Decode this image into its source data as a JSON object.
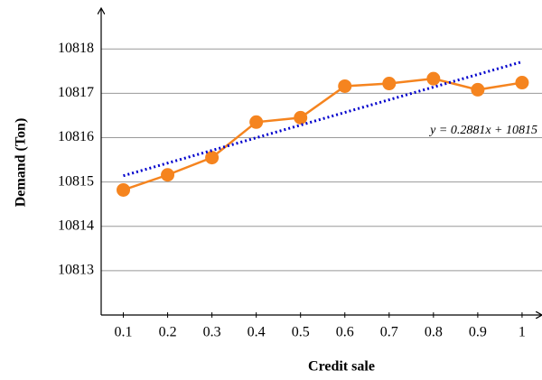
{
  "chart_data": {
    "type": "line",
    "x_label": "Credit sale",
    "y_label": "Demand (Ton)",
    "x": [
      0.1,
      0.2,
      0.3,
      0.4,
      0.5,
      0.6,
      0.7,
      0.8,
      0.9,
      1
    ],
    "series": [
      {
        "color": "#f5841f",
        "values": [
          10814.82,
          10815.16,
          10815.55,
          10816.35,
          10816.45,
          10817.16,
          10817.22,
          10817.33,
          10817.08,
          10817.24
        ]
      }
    ],
    "trendline": {
      "x": [
        0.1,
        1
      ],
      "values": [
        10815.14,
        10817.71
      ],
      "color": "#0000cc",
      "label": "y = 0.2881x + 10815"
    },
    "xlim": [
      0.05,
      1.045
    ],
    "xticks": [
      0.1,
      0.2,
      0.3,
      0.4,
      0.5,
      0.6,
      0.7,
      0.8,
      0.9,
      1
    ],
    "ylim": [
      10812,
      10818.9
    ],
    "yticks": [
      10813,
      10814,
      10815,
      10816,
      10817,
      10818
    ],
    "grid": true
  }
}
